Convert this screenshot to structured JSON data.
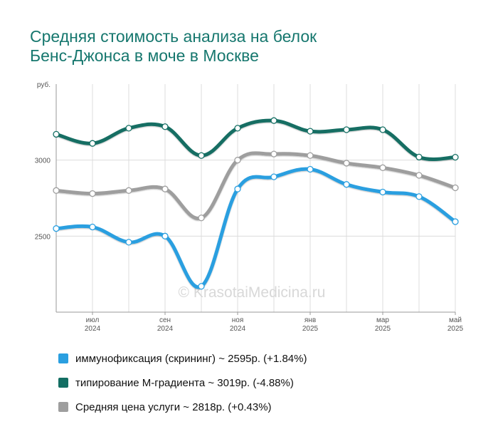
{
  "title": {
    "line1": "Средняя стоимость анализа на белок",
    "line2": "Бенс-Джонса в моче в Москве"
  },
  "watermark": "© KrasotaiMedicina.ru",
  "chart_data": {
    "type": "line",
    "title": "Средняя стоимость анализа на белок Бенс-Джонса в моче в Москве",
    "ylabel": "руб.",
    "xlabel": "",
    "ylim": [
      2000,
      3500
    ],
    "y_ticks": [
      {
        "value": 2500,
        "label": "2500"
      },
      {
        "value": 3000,
        "label": "3000"
      }
    ],
    "x_ticks": [
      {
        "index": 1,
        "month": "июл",
        "year": "2024"
      },
      {
        "index": 3,
        "month": "сен",
        "year": "2024"
      },
      {
        "index": 5,
        "month": "ноя",
        "year": "2024"
      },
      {
        "index": 7,
        "month": "янв",
        "year": "2025"
      },
      {
        "index": 9,
        "month": "мар",
        "year": "2025"
      },
      {
        "index": 11,
        "month": "май",
        "year": "2025"
      }
    ],
    "x": [
      "2024-06",
      "2024-07",
      "2024-08",
      "2024-09",
      "2024-10",
      "2024-11",
      "2024-12",
      "2025-01",
      "2025-02",
      "2025-03",
      "2025-04",
      "2025-05"
    ],
    "grid": true,
    "legend_position": "bottom",
    "series": [
      {
        "name": "иммунофиксация (скрининг) ~ 2595р. (+1.84%)",
        "color": "#2a9fe0",
        "values": [
          2550,
          2560,
          2460,
          2500,
          2170,
          2810,
          2890,
          2940,
          2840,
          2790,
          2760,
          2595
        ]
      },
      {
        "name": "типирование М-градиента ~ 3019р. (-4.88%)",
        "color": "#136e63",
        "values": [
          3170,
          3110,
          3210,
          3220,
          3030,
          3210,
          3260,
          3190,
          3200,
          3200,
          3020,
          3019
        ]
      },
      {
        "name": "Средняя цена услуги ~ 2818р. (+0.43%)",
        "color": "#9e9e9e",
        "values": [
          2800,
          2780,
          2800,
          2810,
          2620,
          3000,
          3040,
          3030,
          2980,
          2950,
          2900,
          2818
        ]
      }
    ]
  }
}
